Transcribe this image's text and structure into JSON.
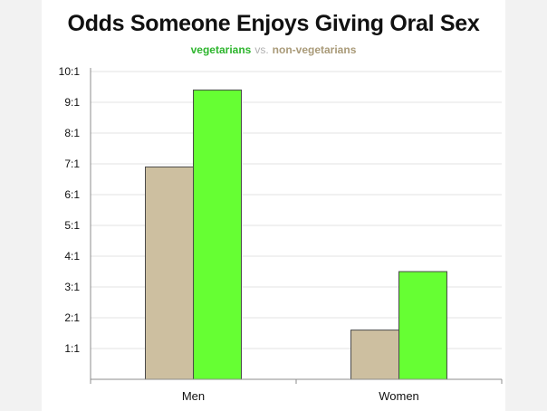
{
  "colors": {
    "veg": "#66ff33",
    "veg_text": "#2db52d",
    "nonveg": "#cdbfa0",
    "nonveg_text": "#a99a78",
    "vs_text": "#b0b0b0",
    "grid": "#e3e3e3",
    "axis": "#8c8c8c",
    "bar_stroke": "#4a4a4a",
    "text": "#111111"
  },
  "chart_data": {
    "type": "bar",
    "title": "Odds Someone Enjoys Giving Oral Sex",
    "subtitle": {
      "series_a": "vegetarians",
      "separator": "vs.",
      "series_b": "non-vegetarians"
    },
    "categories": [
      "Men",
      "Women"
    ],
    "series": [
      {
        "name": "non-vegetarians",
        "values": [
          6.9,
          1.6
        ]
      },
      {
        "name": "vegetarians",
        "values": [
          9.4,
          3.5
        ]
      }
    ],
    "yticks": [
      "1:1",
      "2:1",
      "3:1",
      "4:1",
      "5:1",
      "6:1",
      "7:1",
      "8:1",
      "9:1",
      "10:1"
    ],
    "ylim": [
      0,
      10
    ],
    "grid": true,
    "legend": "subtitle"
  }
}
